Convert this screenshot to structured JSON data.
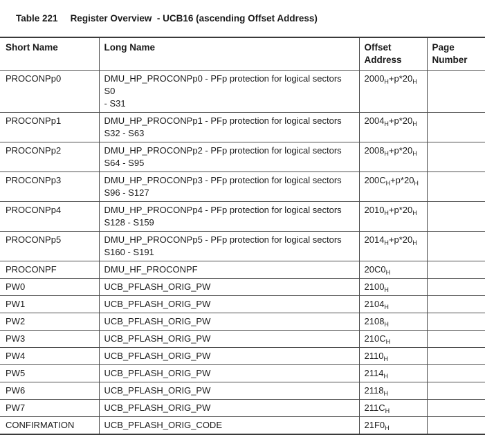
{
  "table": {
    "caption_label": "Table 221",
    "caption_title": "Register Overview  - UCB16 (ascending Offset Address)",
    "columns": [
      "Short Name",
      "Long Name",
      "Offset Address",
      "Page Number"
    ],
    "offset_subscript_note": "segments wrapped in ~ are subscript, e.g. 2000~H~ renders H as subscript",
    "rows": [
      {
        "short_name": "PROCONPp0",
        "long_name": "DMU_HP_PROCONPp0 - PFp protection for logical sectors S0\n- S31",
        "offset": "2000~H~+p*20~H~",
        "page": ""
      },
      {
        "short_name": "PROCONPp1",
        "long_name": "DMU_HP_PROCONPp1 - PFp protection for logical sectors\nS32 - S63",
        "offset": "2004~H~+p*20~H~",
        "page": ""
      },
      {
        "short_name": "PROCONPp2",
        "long_name": "DMU_HP_PROCONPp2 - PFp protection for logical sectors\nS64 - S95",
        "offset": "2008~H~+p*20~H~",
        "page": ""
      },
      {
        "short_name": "PROCONPp3",
        "long_name": "DMU_HP_PROCONPp3 - PFp protection for logical sectors\nS96 - S127",
        "offset": "200C~H~+p*20~H~",
        "page": ""
      },
      {
        "short_name": "PROCONPp4",
        "long_name": "DMU_HP_PROCONPp4 - PFp protection for logical sectors\nS128 - S159",
        "offset": "2010~H~+p*20~H~",
        "page": ""
      },
      {
        "short_name": "PROCONPp5",
        "long_name": "DMU_HP_PROCONPp5 - PFp protection for logical sectors\nS160 - S191",
        "offset": "2014~H~+p*20~H~",
        "page": ""
      },
      {
        "short_name": "PROCONPF",
        "long_name": "DMU_HF_PROCONPF",
        "offset": "20C0~H~",
        "page": ""
      },
      {
        "short_name": "PW0",
        "long_name": "UCB_PFLASH_ORIG_PW",
        "offset": "2100~H~",
        "page": ""
      },
      {
        "short_name": "PW1",
        "long_name": "UCB_PFLASH_ORIG_PW",
        "offset": "2104~H~",
        "page": ""
      },
      {
        "short_name": "PW2",
        "long_name": "UCB_PFLASH_ORIG_PW",
        "offset": "2108~H~",
        "page": ""
      },
      {
        "short_name": "PW3",
        "long_name": "UCB_PFLASH_ORIG_PW",
        "offset": "210C~H~",
        "page": ""
      },
      {
        "short_name": "PW4",
        "long_name": "UCB_PFLASH_ORIG_PW",
        "offset": "2110~H~",
        "page": ""
      },
      {
        "short_name": "PW5",
        "long_name": "UCB_PFLASH_ORIG_PW",
        "offset": "2114~H~",
        "page": ""
      },
      {
        "short_name": "PW6",
        "long_name": "UCB_PFLASH_ORIG_PW",
        "offset": "2118~H~",
        "page": ""
      },
      {
        "short_name": "PW7",
        "long_name": "UCB_PFLASH_ORIG_PW",
        "offset": "211C~H~",
        "page": ""
      },
      {
        "short_name": "CONFIRMATION",
        "long_name": "UCB_PFLASH_ORIG_CODE",
        "offset": "21F0~H~",
        "page": ""
      }
    ]
  }
}
